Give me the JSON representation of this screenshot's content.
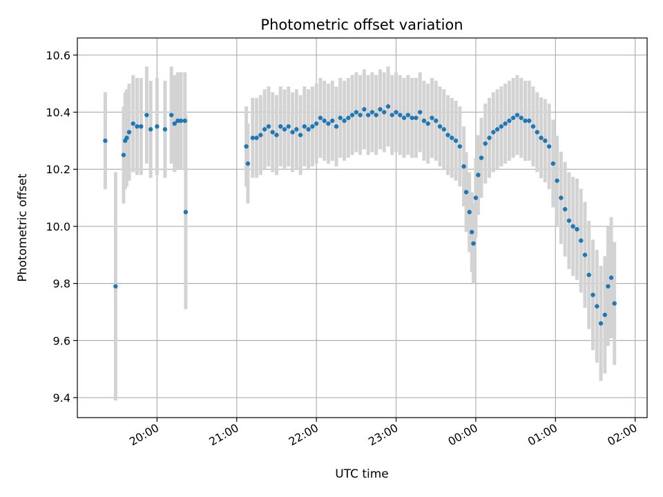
{
  "chart_data": {
    "type": "scatter",
    "title": "Photometric offset variation",
    "xlabel": "UTC time",
    "ylabel": "Photometric offset",
    "x_unit": "hours UTC (values above 24 are after midnight)",
    "xlim": [
      19.0,
      26.15
    ],
    "ylim": [
      9.33,
      10.66
    ],
    "yticks": [
      9.4,
      9.6,
      9.8,
      10.0,
      10.2,
      10.4,
      10.6
    ],
    "ytick_labels": [
      "9.4",
      "9.6",
      "9.8",
      "10.0",
      "10.2",
      "10.4",
      "10.6"
    ],
    "xticks": [
      20,
      21,
      22,
      23,
      24,
      25,
      26
    ],
    "xtick_labels": [
      "20:00",
      "21:00",
      "22:00",
      "23:00",
      "00:00",
      "01:00",
      "02:00"
    ],
    "grid": true,
    "colors": {
      "point": "#1f77b4",
      "errorbar": "#d3d3d3",
      "grid": "#b0b0b0"
    },
    "series": [
      {
        "x": [
          19.35,
          19.48,
          19.58,
          19.6,
          19.62,
          19.65,
          19.7,
          19.75,
          19.8,
          19.87,
          19.92,
          20.0,
          20.1,
          20.18,
          20.22,
          20.26,
          20.3,
          20.35,
          20.36,
          21.12,
          21.14,
          21.2,
          21.25,
          21.3,
          21.35,
          21.4,
          21.45,
          21.5,
          21.55,
          21.6,
          21.65,
          21.7,
          21.75,
          21.8,
          21.85,
          21.9,
          21.95,
          22.0,
          22.05,
          22.1,
          22.15,
          22.2,
          22.25,
          22.3,
          22.35,
          22.4,
          22.45,
          22.5,
          22.55,
          22.6,
          22.65,
          22.7,
          22.75,
          22.8,
          22.85,
          22.9,
          22.95,
          23.0,
          23.05,
          23.1,
          23.15,
          23.2,
          23.25,
          23.3,
          23.35,
          23.4,
          23.45,
          23.5,
          23.55,
          23.6,
          23.65,
          23.7,
          23.75,
          23.8,
          23.85,
          23.88,
          23.92,
          23.95,
          23.97,
          24.0,
          24.03,
          24.07,
          24.12,
          24.17,
          24.22,
          24.27,
          24.32,
          24.37,
          24.42,
          24.47,
          24.52,
          24.57,
          24.62,
          24.67,
          24.72,
          24.77,
          24.82,
          24.87,
          24.92,
          24.97,
          25.02,
          25.07,
          25.12,
          25.17,
          25.22,
          25.27,
          25.32,
          25.37,
          25.42,
          25.47,
          25.52,
          25.57,
          25.62,
          25.66,
          25.7,
          25.74
        ],
        "y": [
          10.3,
          9.79,
          10.25,
          10.3,
          10.31,
          10.33,
          10.36,
          10.35,
          10.35,
          10.39,
          10.34,
          10.35,
          10.34,
          10.39,
          10.36,
          10.37,
          10.37,
          10.37,
          10.05,
          10.28,
          10.22,
          10.31,
          10.31,
          10.32,
          10.34,
          10.35,
          10.33,
          10.32,
          10.35,
          10.34,
          10.35,
          10.33,
          10.34,
          10.32,
          10.35,
          10.34,
          10.35,
          10.36,
          10.38,
          10.37,
          10.36,
          10.37,
          10.35,
          10.38,
          10.37,
          10.38,
          10.39,
          10.4,
          10.39,
          10.41,
          10.39,
          10.4,
          10.39,
          10.41,
          10.4,
          10.42,
          10.39,
          10.4,
          10.39,
          10.38,
          10.39,
          10.38,
          10.38,
          10.4,
          10.37,
          10.36,
          10.38,
          10.37,
          10.35,
          10.34,
          10.32,
          10.31,
          10.3,
          10.28,
          10.21,
          10.12,
          10.05,
          9.98,
          9.94,
          10.1,
          10.18,
          10.24,
          10.29,
          10.31,
          10.33,
          10.34,
          10.35,
          10.36,
          10.37,
          10.38,
          10.39,
          10.38,
          10.37,
          10.37,
          10.35,
          10.33,
          10.31,
          10.3,
          10.28,
          10.22,
          10.16,
          10.1,
          10.06,
          10.02,
          10.0,
          9.99,
          9.95,
          9.9,
          9.83,
          9.76,
          9.72,
          9.66,
          9.69,
          9.79,
          9.82,
          9.73
        ]
      }
    ]
  }
}
